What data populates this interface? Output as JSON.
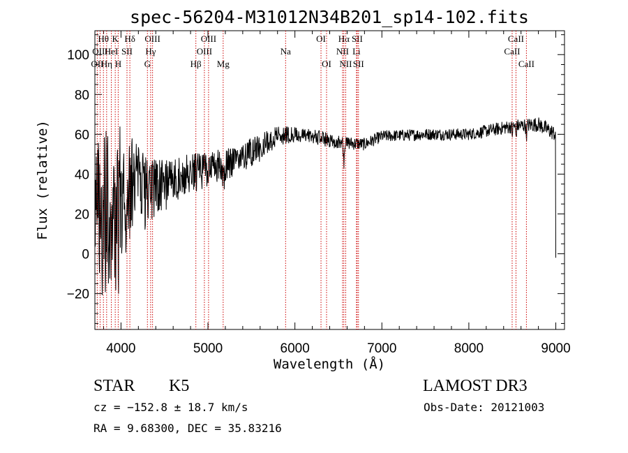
{
  "chart_data": {
    "type": "line",
    "title": "spec-56204-M31012N34B201_sp14-102.fits",
    "xlabel": "Wavelength (Å)",
    "ylabel": "Flux (relative)",
    "xlim": [
      3700,
      9100
    ],
    "ylim": [
      -38,
      112
    ],
    "xticks": [
      4000,
      5000,
      6000,
      7000,
      8000,
      9000
    ],
    "xtick_labels": [
      "4000",
      "5000",
      "6000",
      "7000",
      "8000",
      "9000"
    ],
    "yticks": [
      -20,
      0,
      20,
      40,
      60,
      80,
      100
    ],
    "ytick_labels": [
      "−20",
      "0",
      "20",
      "40",
      "60",
      "80",
      "100"
    ],
    "grid": false,
    "series": [
      {
        "name": "flux",
        "color": "#000000",
        "continuum": [
          [
            3700,
            15
          ],
          [
            4000,
            30
          ],
          [
            4400,
            33
          ],
          [
            4800,
            40
          ],
          [
            5200,
            45
          ],
          [
            5600,
            53
          ],
          [
            5800,
            60
          ],
          [
            6200,
            59
          ],
          [
            6500,
            56
          ],
          [
            6800,
            55
          ],
          [
            7000,
            59
          ],
          [
            7500,
            60
          ],
          [
            8000,
            60
          ],
          [
            8500,
            64
          ],
          [
            8800,
            65
          ],
          [
            9000,
            60
          ]
        ],
        "noise": [
          [
            3700,
            45
          ],
          [
            4000,
            35
          ],
          [
            4400,
            14
          ],
          [
            5000,
            9
          ],
          [
            5600,
            7
          ],
          [
            6000,
            4
          ],
          [
            7000,
            3
          ],
          [
            8000,
            3
          ],
          [
            9000,
            4
          ]
        ],
        "features": [
          [
            6563,
            -10,
            6
          ],
          [
            8498,
            -4,
            5
          ],
          [
            8542,
            -5,
            5
          ],
          [
            8662,
            -5,
            5
          ],
          [
            5175,
            -8,
            12
          ],
          [
            3934,
            -15,
            8
          ],
          [
            3968,
            -15,
            8
          ]
        ],
        "end_point": [
          9000,
          -2
        ]
      }
    ],
    "line_markers": [
      {
        "label": "Hθ",
        "wavelength": 3798,
        "row": 0
      },
      {
        "label": "OII",
        "wavelength": 3727,
        "row": 2
      },
      {
        "label": "OIII",
        "wavelength": 3760,
        "row": 1
      },
      {
        "label": "K",
        "wavelength": 3934,
        "row": 0
      },
      {
        "label": "HeI",
        "wavelength": 3889,
        "row": 1
      },
      {
        "label": "Hη",
        "wavelength": 3835,
        "row": 2
      },
      {
        "label": "SII",
        "wavelength": 4069,
        "row": 1
      },
      {
        "label": "H",
        "wavelength": 3968,
        "row": 2
      },
      {
        "label": "Hδ",
        "wavelength": 4102,
        "row": 0
      },
      {
        "label": "OIII",
        "wavelength": 4363,
        "row": 0
      },
      {
        "label": "Hγ",
        "wavelength": 4341,
        "row": 1
      },
      {
        "label": "G",
        "wavelength": 4304,
        "row": 2
      },
      {
        "label": "OIII",
        "wavelength": 5007,
        "row": 0
      },
      {
        "label": "OIII",
        "wavelength": 4959,
        "row": 1
      },
      {
        "label": "Hβ",
        "wavelength": 4861,
        "row": 2
      },
      {
        "label": "Mg",
        "wavelength": 5175,
        "row": 2
      },
      {
        "label": "Na",
        "wavelength": 5893,
        "row": 1
      },
      {
        "label": "OI",
        "wavelength": 6300,
        "row": 0
      },
      {
        "label": "OI",
        "wavelength": 6364,
        "row": 2
      },
      {
        "label": "Hα",
        "wavelength": 6563,
        "row": 0
      },
      {
        "label": "SII",
        "wavelength": 6716,
        "row": 0
      },
      {
        "label": "NII",
        "wavelength": 6548,
        "row": 1
      },
      {
        "label": "Li",
        "wavelength": 6708,
        "row": 1
      },
      {
        "label": "NII",
        "wavelength": 6584,
        "row": 2
      },
      {
        "label": "SII",
        "wavelength": 6731,
        "row": 2
      },
      {
        "label": "CaII",
        "wavelength": 8542,
        "row": 0
      },
      {
        "label": "CaII",
        "wavelength": 8498,
        "row": 1
      },
      {
        "label": "CaII",
        "wavelength": 8662,
        "row": 2
      }
    ],
    "marker_color": "#cc0000"
  },
  "info": {
    "class_label": "STAR",
    "subclass": "K5",
    "survey": "LAMOST DR3",
    "cz_line": "cz = −152.8 ± 18.7 km/s",
    "obs_date_line": "Obs-Date: 20121003",
    "radec_line": "RA =   9.68300, DEC =  35.83216"
  }
}
